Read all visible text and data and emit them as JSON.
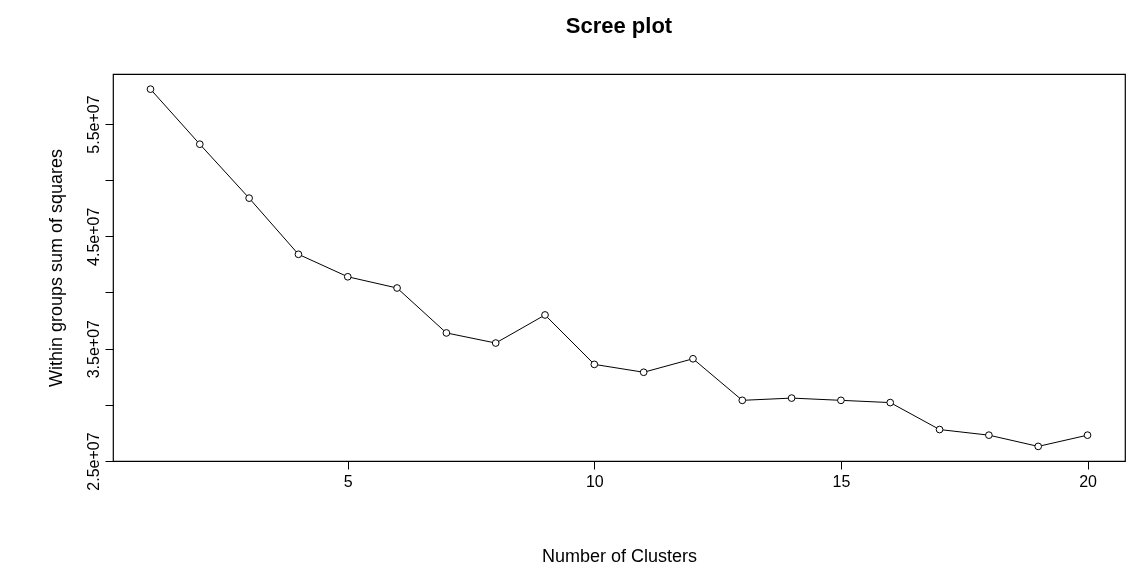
{
  "chart_data": {
    "type": "line",
    "title": "Scree plot",
    "xlabel": "Number of Clusters",
    "ylabel": "Within groups sum of squares",
    "x": [
      1,
      2,
      3,
      4,
      5,
      6,
      7,
      8,
      9,
      10,
      11,
      12,
      13,
      14,
      15,
      16,
      17,
      18,
      19,
      20
    ],
    "series": [
      {
        "color": "#000000",
        "values": [
          58100000,
          53200000,
          48400000,
          43400000,
          41400000,
          40400000,
          36400000,
          35500000,
          38000000,
          33600000,
          32900000,
          34100000,
          30400000,
          30600000,
          30400000,
          30200000,
          27800000,
          27300000,
          26300000,
          27300000
        ]
      }
    ],
    "xlim": [
      0.24,
      20.76
    ],
    "xticks": [
      5,
      10,
      15,
      20
    ],
    "ylim": [
      25000000,
      59450000
    ],
    "yticks": [
      {
        "value": 25000000,
        "label": "2.5e+07"
      },
      {
        "value": 30000000,
        "label": null
      },
      {
        "value": 35000000,
        "label": "3.5e+07"
      },
      {
        "value": 40000000,
        "label": null
      },
      {
        "value": 45000000,
        "label": "4.5e+07"
      },
      {
        "value": 50000000,
        "label": null
      },
      {
        "value": 55000000,
        "label": "5.5e+07"
      }
    ],
    "marker": "circle",
    "line_style": "solid"
  }
}
